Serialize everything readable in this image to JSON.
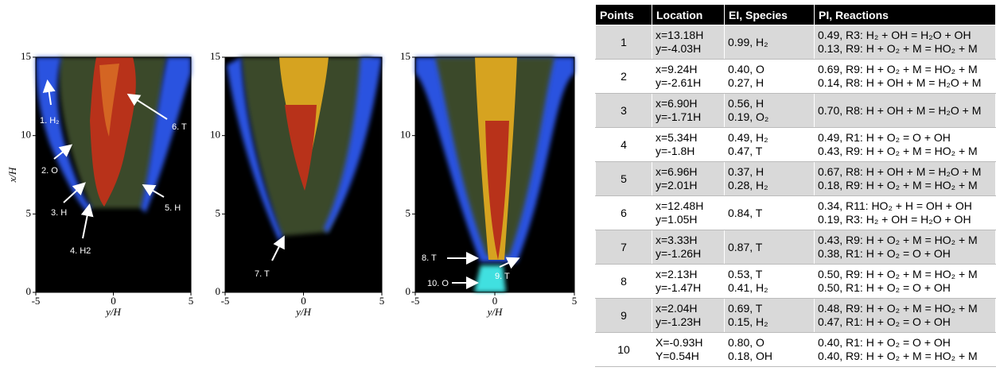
{
  "panels": [
    {
      "xlabel": "y/H",
      "ylabel": "x/H",
      "xlim": [
        -5,
        5
      ],
      "ylim": [
        0,
        15
      ],
      "xticks": [
        -5,
        0,
        5
      ],
      "yticks": [
        0,
        5,
        10,
        15
      ],
      "annotations": [
        "1. H₂",
        "2. O",
        "3. H",
        "4. H2",
        "5. H",
        "6. T"
      ]
    },
    {
      "xlabel": "y/H",
      "xlim": [
        -5,
        5
      ],
      "ylim": [
        0,
        15
      ],
      "xticks": [
        -5,
        0,
        5
      ],
      "yticks": [
        0,
        5,
        10,
        15
      ],
      "annotations": [
        "7. T"
      ]
    },
    {
      "xlabel": "y/H",
      "xlim": [
        -5,
        5
      ],
      "ylim": [
        0,
        15
      ],
      "xticks": [
        -5,
        0,
        5
      ],
      "yticks": [
        0,
        5,
        10,
        15
      ],
      "annotations": [
        "8. T",
        "9. T",
        "10. O"
      ]
    }
  ],
  "table": {
    "header": [
      "Points",
      "Location",
      "EI, Species",
      "PI, Reactions"
    ],
    "rows": [
      [
        "1",
        [
          "x=13.18H",
          "y=-4.03H"
        ],
        [
          "0.99, H₂"
        ],
        [
          "0.49, R3: H₂ + OH = H₂O + OH",
          "0.13, R9: H + O₂ + M = HO₂ + M"
        ]
      ],
      [
        "2",
        [
          "x=9.24H",
          "y=-2.61H"
        ],
        [
          "0.40, O",
          "0.27, H"
        ],
        [
          "0.69, R9: H + O₂ + M = HO₂ + M",
          "0.14, R8: H + OH + M = H₂O + M"
        ]
      ],
      [
        "3",
        [
          "x=6.90H",
          "y=-1.71H"
        ],
        [
          "0.56, H",
          "0.19, O₂"
        ],
        [
          "0.70, R8: H + OH + M = H₂O + M"
        ]
      ],
      [
        "4",
        [
          "x=5.34H",
          "y=-1.8H"
        ],
        [
          "0.49, H₂",
          "0.47, T"
        ],
        [
          "0.49, R1: H + O₂ = O + OH",
          "0.43, R9: H + O₂ + M = HO₂ + M"
        ]
      ],
      [
        "5",
        [
          "x=6.96H",
          "y=2.01H"
        ],
        [
          "0.37, H",
          "0.28, H₂"
        ],
        [
          "0.67, R8: H + OH + M = H₂O + M",
          "0.18, R9: H + O₂ + M = HO₂ + M"
        ]
      ],
      [
        "6",
        [
          "x=12.48H",
          "y=1.05H"
        ],
        [
          "0.84, T"
        ],
        [
          "0.34, R11: HO₂ + H = OH + OH",
          "0.19, R3: H₂ + OH = H₂O + OH"
        ]
      ],
      [
        "7",
        [
          "x=3.33H",
          "y=-1.26H"
        ],
        [
          "0.87, T"
        ],
        [
          "0.43, R9: H + O₂ + M = HO₂ + M",
          "0.38, R1: H + O₂ = O + OH"
        ]
      ],
      [
        "8",
        [
          "x=2.13H",
          "y=-1.47H"
        ],
        [
          "0.53, T",
          "0.41, H₂"
        ],
        [
          "0.50, R9: H + O₂ + M = HO₂ + M",
          "0.50, R1: H + O₂ = O + OH"
        ]
      ],
      [
        "9",
        [
          "x=2.04H",
          "y=-1.23H"
        ],
        [
          "0.69, T",
          "0.15, H₂"
        ],
        [
          "0.48, R9: H + O₂ + M = HO₂ + M",
          "0.47, R1: H + O₂ = O + OH"
        ]
      ],
      [
        "10",
        [
          "X=-0.93H",
          "Y=0.54H"
        ],
        [
          "0.80, O",
          "0.18, OH"
        ],
        [
          "0.40, R1: H + O₂ = O + OH",
          "0.40, R9: H + O₂ + M = HO₂ + M"
        ]
      ]
    ]
  }
}
